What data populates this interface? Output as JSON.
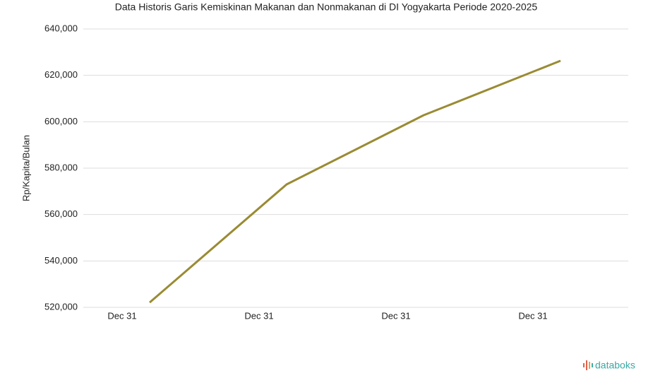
{
  "chart_data": {
    "type": "line",
    "title": "Data Historis Garis Kemiskinan Makanan dan Nonmakanan di DI Yogyakarta Periode 2020-2025",
    "y_label": "Rp/Kapita/Bulan",
    "categories": [
      null,
      null,
      null,
      null
    ],
    "xtick_labels": [
      "Dec 31",
      "Dec 31",
      "Dec 31",
      "Dec 31"
    ],
    "values": [
      522100,
      573000,
      602800,
      626300
    ],
    "color": "#9a8b33",
    "ylim": [
      520000,
      640000
    ],
    "yticks": [
      {
        "value": 520000,
        "label": "520,000"
      },
      {
        "value": 540000,
        "label": "540,000"
      },
      {
        "value": 560000,
        "label": "560,000"
      },
      {
        "value": 580000,
        "label": "580,000"
      },
      {
        "value": 600000,
        "label": "600,000"
      },
      {
        "value": 620000,
        "label": "620,000"
      },
      {
        "value": 640000,
        "label": "640,000"
      }
    ],
    "grid": true,
    "brand": "databoks"
  }
}
